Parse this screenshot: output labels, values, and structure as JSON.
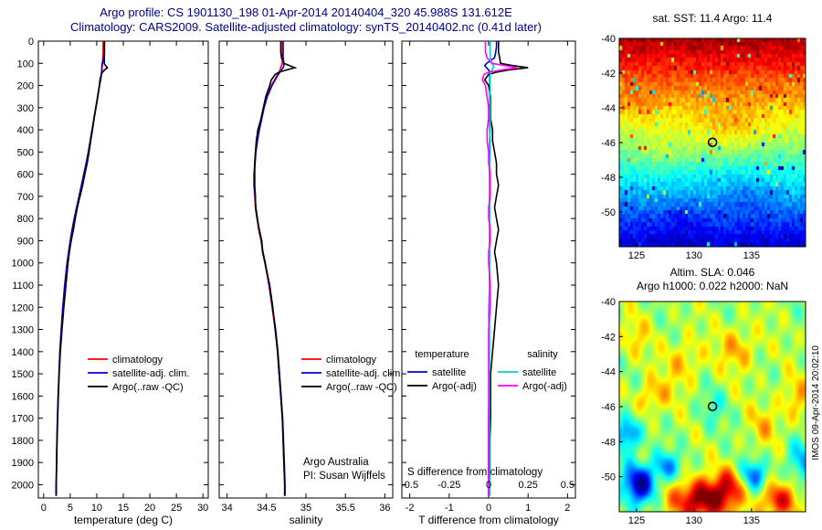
{
  "title": {
    "line1": "Argo profile: CS 1901130_198 01-Apr-2014 20140404_320 45.988S 131.612E",
    "line2": "Climatology: CARS2009. Satellite-adjusted climatology: synTS_20140402.nc (0.41d later)"
  },
  "maps": {
    "sst": {
      "title": "sat. SST: 11.4 Argo: 11.4"
    },
    "sla": {
      "title1": "Altim. SLA: 0.046",
      "title2": "Argo h1000: 0.022 h2000: NaN"
    },
    "watermark": "IMOS 09-Apr-2014 20:02:10"
  },
  "chart_data": [
    {
      "id": "temperature_profile",
      "type": "line",
      "xlabel": "temperature (deg C)",
      "xlim": [
        -1,
        31
      ],
      "xticks": [
        0,
        5,
        10,
        15,
        20,
        25,
        30
      ],
      "ylim": [
        0,
        2060
      ],
      "yticks": [
        0,
        100,
        200,
        300,
        400,
        500,
        600,
        700,
        800,
        900,
        1000,
        1100,
        1200,
        1300,
        1400,
        1500,
        1600,
        1700,
        1800,
        1900,
        2000
      ],
      "depths": [
        0,
        25,
        50,
        75,
        100,
        110,
        120,
        130,
        140,
        150,
        175,
        200,
        250,
        300,
        350,
        400,
        450,
        500,
        550,
        600,
        650,
        700,
        750,
        800,
        850,
        900,
        950,
        1000,
        1100,
        1200,
        1300,
        1400,
        1500,
        1600,
        1700,
        1800,
        1900,
        2000,
        2050
      ],
      "series": [
        {
          "name": "climatology",
          "color": "#ff0000",
          "values": [
            11.2,
            11.2,
            11.2,
            11.15,
            11.1,
            11.05,
            11.0,
            10.95,
            10.9,
            10.85,
            10.7,
            10.5,
            10.15,
            9.8,
            9.45,
            9.1,
            8.75,
            8.4,
            8.0,
            7.55,
            7.1,
            6.65,
            6.2,
            5.75,
            5.35,
            5.0,
            4.7,
            4.4,
            3.95,
            3.6,
            3.3,
            3.05,
            2.88,
            2.72,
            2.6,
            2.5,
            2.42,
            2.36,
            2.34
          ]
        },
        {
          "name": "satellite-adj. clim.",
          "color": "#0000dd",
          "values": [
            11.4,
            11.4,
            11.38,
            11.3,
            11.05,
            10.95,
            10.95,
            10.95,
            10.92,
            10.88,
            10.73,
            10.53,
            10.18,
            9.83,
            9.48,
            9.13,
            8.78,
            8.43,
            8.02,
            7.57,
            7.12,
            6.67,
            6.22,
            5.77,
            5.37,
            5.02,
            4.72,
            4.42,
            3.97,
            3.61,
            3.31,
            3.06,
            2.89,
            2.73,
            2.6,
            2.5,
            2.42,
            2.36,
            2.34
          ]
        },
        {
          "name": "Argo(..raw -QC)",
          "color": "#000000",
          "values": [
            11.45,
            11.45,
            11.45,
            11.43,
            11.4,
            11.65,
            12.0,
            11.45,
            11.1,
            10.85,
            10.6,
            10.5,
            10.2,
            9.85,
            9.5,
            9.2,
            8.85,
            8.55,
            8.2,
            7.75,
            7.35,
            6.85,
            6.35,
            5.95,
            5.6,
            5.2,
            4.85,
            4.6,
            4.2,
            3.8,
            3.45,
            3.15,
            2.93,
            2.77,
            2.65,
            2.53,
            2.45,
            2.38,
            2.36
          ]
        }
      ]
    },
    {
      "id": "salinity_profile",
      "type": "line",
      "xlabel": "salinity",
      "xlim": [
        33.9,
        36.1
      ],
      "xticks": [
        34,
        34.5,
        35,
        35.5,
        36
      ],
      "xtick_labels": [
        "34",
        "34.5",
        "35",
        "35.5",
        "36"
      ],
      "ylim": [
        0,
        2060
      ],
      "yticks": [
        0,
        100,
        200,
        300,
        400,
        500,
        600,
        700,
        800,
        900,
        1000,
        1100,
        1200,
        1300,
        1400,
        1500,
        1600,
        1700,
        1800,
        1900,
        2000
      ],
      "notes": [
        "Argo Australia",
        "PI: Susan Wijffels"
      ],
      "depths": [
        0,
        25,
        50,
        75,
        100,
        110,
        120,
        130,
        140,
        150,
        175,
        200,
        250,
        300,
        350,
        400,
        450,
        500,
        550,
        600,
        650,
        700,
        750,
        800,
        850,
        900,
        950,
        1000,
        1100,
        1200,
        1300,
        1400,
        1500,
        1600,
        1700,
        1800,
        1900,
        2000,
        2050
      ],
      "series": [
        {
          "name": "climatology",
          "color": "#ff0000",
          "values": [
            34.7,
            34.7,
            34.7,
            34.7,
            34.7,
            34.69,
            34.68,
            34.67,
            34.66,
            34.64,
            34.6,
            34.56,
            34.5,
            34.46,
            34.43,
            34.4,
            34.38,
            34.36,
            34.35,
            34.34,
            34.34,
            34.35,
            34.36,
            34.38,
            34.4,
            34.43,
            34.45,
            34.48,
            34.53,
            34.57,
            34.61,
            34.64,
            34.66,
            34.68,
            34.7,
            34.71,
            34.72,
            34.73,
            34.73
          ]
        },
        {
          "name": "satellite-adj. clim.",
          "color": "#0000dd",
          "values": [
            34.71,
            34.71,
            34.71,
            34.71,
            34.72,
            34.72,
            34.71,
            34.69,
            34.67,
            34.65,
            34.61,
            34.57,
            34.51,
            34.47,
            34.44,
            34.41,
            34.385,
            34.365,
            34.355,
            34.345,
            34.345,
            34.355,
            34.365,
            34.385,
            34.405,
            34.435,
            34.455,
            34.485,
            34.535,
            34.575,
            34.615,
            34.645,
            34.665,
            34.685,
            34.705,
            34.715,
            34.725,
            34.735,
            34.735
          ]
        },
        {
          "name": "Argo(..raw -QC)",
          "color": "#000000",
          "values": [
            34.68,
            34.68,
            34.68,
            34.69,
            34.72,
            34.79,
            34.86,
            34.75,
            34.66,
            34.61,
            34.56,
            34.54,
            34.49,
            34.46,
            34.43,
            34.39,
            34.37,
            34.36,
            34.35,
            34.35,
            34.35,
            34.36,
            34.36,
            34.38,
            34.41,
            34.44,
            34.45,
            34.48,
            34.54,
            34.58,
            34.61,
            34.64,
            34.66,
            34.68,
            34.7,
            34.71,
            34.72,
            34.73,
            34.73
          ]
        }
      ]
    },
    {
      "id": "difference_profile",
      "type": "line",
      "xlabel": "T difference from climatology",
      "xlabel_secondary": "S difference from climatology",
      "xlim": [
        -2.2,
        2.2
      ],
      "xticks": [
        -2,
        -1,
        0,
        1,
        2
      ],
      "sticks": [
        -0.5,
        -0.25,
        0,
        0.25,
        0.5
      ],
      "stick_labels": [
        "-0.5",
        "-0.25",
        "0",
        "0.25",
        "0.5"
      ],
      "s_scale": 4,
      "ylim": [
        0,
        2060
      ],
      "yticks": [
        0,
        100,
        200,
        300,
        400,
        500,
        600,
        700,
        800,
        900,
        1000,
        1100,
        1200,
        1300,
        1400,
        1500,
        1600,
        1700,
        1800,
        1900,
        2000
      ],
      "legend": {
        "columns": [
          {
            "header": "temperature",
            "entries": [
              {
                "name": "satellite",
                "color": "#0000dd"
              },
              {
                "name": "Argo(-adj)",
                "color": "#000000"
              }
            ]
          },
          {
            "header": "salinity",
            "entries": [
              {
                "name": "satellite",
                "color": "#00cccc"
              },
              {
                "name": "Argo(-adj)",
                "color": "#ff00ff"
              }
            ]
          }
        ]
      },
      "depths": [
        0,
        25,
        50,
        75,
        100,
        110,
        120,
        130,
        140,
        150,
        175,
        200,
        250,
        300,
        350,
        400,
        450,
        500,
        550,
        600,
        650,
        700,
        750,
        800,
        850,
        900,
        950,
        1000,
        1100,
        1200,
        1300,
        1400,
        1500,
        1600,
        1700,
        1800,
        1900,
        2000,
        2050
      ],
      "series": [
        {
          "name": "T satellite",
          "axis": "T",
          "color": "#0000dd",
          "values": [
            0.2,
            0.2,
            0.18,
            0.15,
            -0.05,
            -0.1,
            -0.05,
            0,
            0.02,
            0.03,
            0.03,
            0.03,
            0.03,
            0.03,
            0.03,
            0.03,
            0.03,
            0.03,
            0.02,
            0.02,
            0.02,
            0.02,
            0.02,
            0.02,
            0.02,
            0.02,
            0.02,
            0.02,
            0.02,
            0.01,
            0.01,
            0.01,
            0.01,
            0.01,
            0,
            0,
            0,
            0,
            0
          ]
        },
        {
          "name": "T Argo(-adj)",
          "axis": "T",
          "color": "#000000",
          "values": [
            0.25,
            0.25,
            0.25,
            0.28,
            0.3,
            0.6,
            1.0,
            0.5,
            0.2,
            0,
            -0.1,
            0,
            0.05,
            0.05,
            0.05,
            0.1,
            0.1,
            0.15,
            0.2,
            0.2,
            0.25,
            0.2,
            0.15,
            0.2,
            0.25,
            0.2,
            0.15,
            0.2,
            0.25,
            0.2,
            0.15,
            0.1,
            0.05,
            0.05,
            0.05,
            0.03,
            0.03,
            0.02,
            0.02
          ]
        },
        {
          "name": "S satellite",
          "axis": "S",
          "color": "#00cccc",
          "values": [
            0.01,
            0.01,
            0.01,
            0.01,
            0.02,
            0.03,
            0.03,
            0.02,
            0.01,
            0.01,
            0.01,
            0.01,
            0.01,
            0.01,
            0.01,
            0.01,
            0.005,
            0.005,
            0.005,
            0.005,
            0.005,
            0.005,
            0.005,
            0.005,
            0.005,
            0.005,
            0.005,
            0.005,
            0.005,
            0.005,
            0.005,
            0.005,
            0.005,
            0.005,
            0.005,
            0.005,
            0.005,
            0.005,
            0.005
          ]
        },
        {
          "name": "S Argo(-adj)",
          "axis": "S",
          "color": "#ff00ff",
          "values": [
            -0.02,
            -0.02,
            -0.02,
            -0.01,
            0.02,
            0.1,
            0.18,
            0.08,
            0,
            -0.03,
            -0.04,
            -0.02,
            -0.01,
            0,
            0,
            -0.01,
            -0.01,
            0,
            0,
            0.01,
            0.01,
            0.01,
            0,
            0,
            0.01,
            0.01,
            0,
            0,
            0.01,
            0.01,
            0,
            0,
            0,
            0,
            0,
            0,
            0,
            0,
            0
          ]
        }
      ]
    },
    {
      "id": "sst_map",
      "type": "heatmap",
      "title": "sat. SST: 11.4 Argo: 11.4",
      "lon_lim": [
        123.5,
        139.7
      ],
      "lat_lim": [
        -40,
        -52
      ],
      "xticks": [
        125,
        130,
        135
      ],
      "yticks": [
        -40,
        -42,
        -44,
        -46,
        -48,
        -50
      ],
      "marker": {
        "lon": 131.612,
        "lat": -45.988
      },
      "style": "pixelated",
      "field": {
        "v_top": 0.97,
        "v_bottom": 0.08,
        "noise": 0.05,
        "speckle_prob": 0.05,
        "anomalies": [
          {
            "lon": 133.0,
            "lat": -45.2,
            "sx": 2.2,
            "sy": 0.9,
            "amp": 0.1
          },
          {
            "lon": 127.5,
            "lat": -46.5,
            "sx": 1.5,
            "sy": 0.7,
            "amp": 0.07
          },
          {
            "lon": 125.5,
            "lat": -44.0,
            "sx": 1.2,
            "sy": 0.6,
            "amp": 0.05
          },
          {
            "lon": 134.5,
            "lat": -49.0,
            "sx": 1.5,
            "sy": 0.8,
            "amp": -0.06
          },
          {
            "lon": 129.0,
            "lat": -50.5,
            "sx": 1.5,
            "sy": 0.8,
            "amp": -0.05
          }
        ]
      }
    },
    {
      "id": "sla_map",
      "type": "heatmap",
      "title_line1": "Altim. SLA: 0.046",
      "title_line2": "Argo h1000: 0.022 h2000: NaN",
      "lon_lim": [
        123.5,
        139.7
      ],
      "lat_lim": [
        -40,
        -52
      ],
      "xticks": [
        125,
        130,
        135
      ],
      "yticks": [
        -40,
        -42,
        -44,
        -46,
        -48,
        -50
      ],
      "marker": {
        "lon": 131.612,
        "lat": -45.988
      },
      "style": "smooth",
      "field": {
        "base": 0.54,
        "ripple": 0.05,
        "blobs": [
          {
            "lon": 125.3,
            "lat": -50.4,
            "sx": 1.0,
            "sy": 0.8,
            "amp": -0.5
          },
          {
            "lon": 124.2,
            "lat": -47.6,
            "sx": 0.8,
            "sy": 0.7,
            "amp": -0.33
          },
          {
            "lon": 127.6,
            "lat": -49.4,
            "sx": 0.8,
            "sy": 0.6,
            "amp": -0.25
          },
          {
            "lon": 130.8,
            "lat": -51.3,
            "sx": 1.8,
            "sy": 0.8,
            "amp": 0.5
          },
          {
            "lon": 133.1,
            "lat": -50.4,
            "sx": 0.9,
            "sy": 0.7,
            "amp": 0.22
          },
          {
            "lon": 135.2,
            "lat": -49.9,
            "sx": 0.8,
            "sy": 0.6,
            "amp": -0.3
          },
          {
            "lon": 137.3,
            "lat": -51.4,
            "sx": 1.1,
            "sy": 0.7,
            "amp": 0.34
          },
          {
            "lon": 139.3,
            "lat": -49.2,
            "sx": 0.9,
            "sy": 0.8,
            "amp": -0.22
          },
          {
            "lon": 138.8,
            "lat": -45.6,
            "sx": 1.0,
            "sy": 0.9,
            "amp": 0.14
          },
          {
            "lon": 133.8,
            "lat": -42.7,
            "sx": 1.2,
            "sy": 0.9,
            "amp": 0.16
          },
          {
            "lon": 129.2,
            "lat": -43.4,
            "sx": 1.1,
            "sy": 0.9,
            "amp": 0.14
          },
          {
            "lon": 124.8,
            "lat": -42.1,
            "sx": 0.9,
            "sy": 0.8,
            "amp": 0.12
          },
          {
            "lon": 131.6,
            "lat": -46.1,
            "sx": 0.9,
            "sy": 0.8,
            "amp": -0.1
          },
          {
            "lon": 127.0,
            "lat": -45.2,
            "sx": 1.0,
            "sy": 0.8,
            "amp": 0.1
          },
          {
            "lon": 136.2,
            "lat": -47.0,
            "sx": 1.0,
            "sy": 0.8,
            "amp": 0.12
          },
          {
            "lon": 125.9,
            "lat": -45.6,
            "sx": 0.7,
            "sy": 0.6,
            "amp": 0.12
          }
        ]
      }
    }
  ]
}
